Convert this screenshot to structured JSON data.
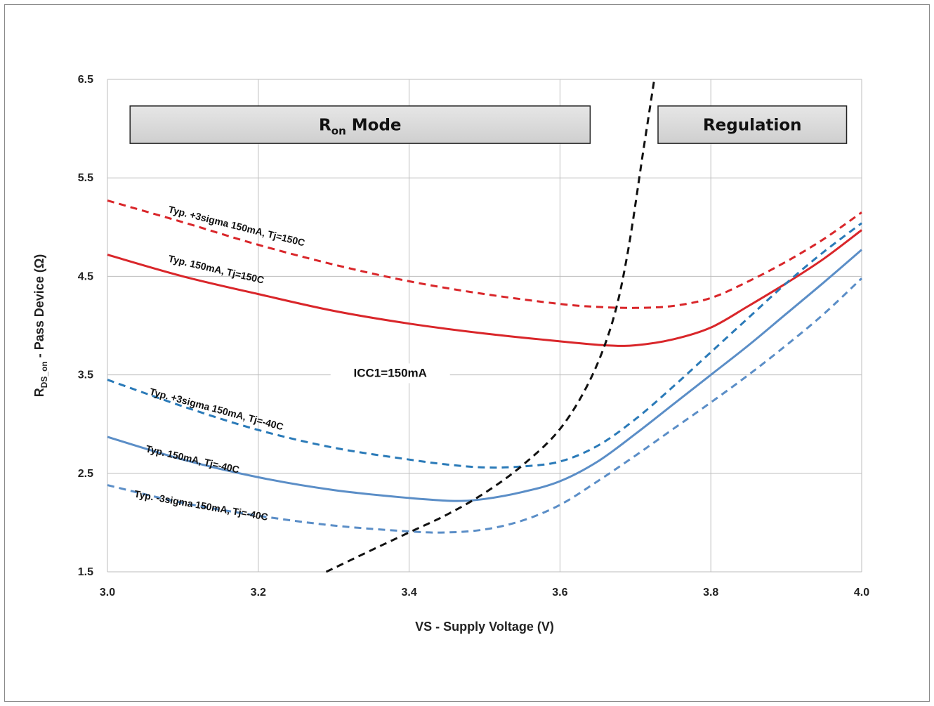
{
  "chart_data": {
    "type": "line",
    "xlabel": "VS - Supply Voltage (V)",
    "ylabel_main": "R",
    "ylabel_sub": "DS_on",
    "ylabel_rest": " - Pass Device (Ω)",
    "xlim": [
      3.0,
      4.0
    ],
    "ylim": [
      1.5,
      6.5
    ],
    "x_ticks": [
      "3.0",
      "3.2",
      "3.4",
      "3.6",
      "3.8",
      "4.0"
    ],
    "x_tick_values": [
      3.0,
      3.2,
      3.4,
      3.6,
      3.8,
      4.0
    ],
    "y_ticks": [
      "1.5",
      "2.5",
      "3.5",
      "4.5",
      "5.5",
      "6.5"
    ],
    "y_tick_values": [
      1.5,
      2.5,
      3.5,
      4.5,
      5.5,
      6.5
    ],
    "grid": true,
    "regions": [
      {
        "label_main": "R",
        "label_sub": "on",
        "label_rest": " Mode",
        "x": [
          3.03,
          3.64
        ],
        "y": [
          6.23,
          5.85
        ]
      },
      {
        "label_main": "Regulation",
        "label_sub": "",
        "label_rest": "",
        "x": [
          3.73,
          3.98
        ],
        "y": [
          6.23,
          5.85
        ]
      }
    ],
    "series": [
      {
        "label": "Typ. +3sigma  150mA, Tj=150C",
        "color": "#d9262a",
        "dashed": true,
        "x": [
          3.0,
          3.1,
          3.2,
          3.3,
          3.4,
          3.5,
          3.6,
          3.65,
          3.7,
          3.75,
          3.8,
          3.85,
          3.9,
          3.95,
          4.0
        ],
        "y": [
          5.27,
          5.05,
          4.82,
          4.62,
          4.45,
          4.32,
          4.22,
          4.19,
          4.18,
          4.2,
          4.28,
          4.45,
          4.65,
          4.88,
          5.15
        ]
      },
      {
        "label": "Typ.  150mA, Tj=150C",
        "color": "#d9262a",
        "dashed": false,
        "x": [
          3.0,
          3.1,
          3.2,
          3.3,
          3.4,
          3.5,
          3.6,
          3.66,
          3.7,
          3.75,
          3.8,
          3.85,
          3.9,
          3.95,
          4.0
        ],
        "y": [
          4.72,
          4.5,
          4.32,
          4.15,
          4.02,
          3.92,
          3.84,
          3.8,
          3.8,
          3.86,
          3.98,
          4.2,
          4.43,
          4.68,
          4.97
        ]
      },
      {
        "label": "Typ. +3sigma  150mA, Tj=-40C",
        "color": "#2a7ab8",
        "dashed": true,
        "x": [
          3.0,
          3.1,
          3.2,
          3.3,
          3.4,
          3.45,
          3.5,
          3.55,
          3.6,
          3.65,
          3.7,
          3.75,
          3.8,
          3.85,
          3.9,
          3.95,
          4.0
        ],
        "y": [
          3.45,
          3.18,
          2.94,
          2.76,
          2.64,
          2.59,
          2.56,
          2.57,
          2.62,
          2.78,
          3.05,
          3.38,
          3.73,
          4.08,
          4.43,
          4.75,
          5.04
        ]
      },
      {
        "label": "Typ.  150mA, Tj=-40C",
        "color": "#5b8ec7",
        "dashed": false,
        "x": [
          3.0,
          3.1,
          3.2,
          3.3,
          3.4,
          3.46,
          3.5,
          3.55,
          3.6,
          3.65,
          3.7,
          3.75,
          3.8,
          3.85,
          3.9,
          3.95,
          4.0
        ],
        "y": [
          2.87,
          2.64,
          2.46,
          2.33,
          2.25,
          2.22,
          2.24,
          2.31,
          2.42,
          2.62,
          2.9,
          3.2,
          3.5,
          3.8,
          4.12,
          4.44,
          4.77
        ]
      },
      {
        "label": "Typ. -3sigma  150mA, Tj=-40C",
        "color": "#5b8ec7",
        "dashed": true,
        "x": [
          3.0,
          3.1,
          3.2,
          3.3,
          3.4,
          3.45,
          3.5,
          3.55,
          3.6,
          3.65,
          3.7,
          3.75,
          3.8,
          3.85,
          3.9,
          3.95,
          4.0
        ],
        "y": [
          2.38,
          2.2,
          2.07,
          1.97,
          1.91,
          1.9,
          1.93,
          2.02,
          2.18,
          2.42,
          2.68,
          2.95,
          3.22,
          3.5,
          3.8,
          4.12,
          4.48
        ]
      },
      {
        "label": "ICC1=150mA",
        "color": "#111111",
        "dashed": true,
        "x": [
          3.29,
          3.35,
          3.4,
          3.45,
          3.5,
          3.55,
          3.6,
          3.64,
          3.67,
          3.69,
          3.71,
          3.725
        ],
        "y": [
          1.5,
          1.72,
          1.9,
          2.08,
          2.3,
          2.58,
          2.95,
          3.45,
          4.05,
          4.75,
          5.75,
          6.5
        ]
      }
    ]
  }
}
